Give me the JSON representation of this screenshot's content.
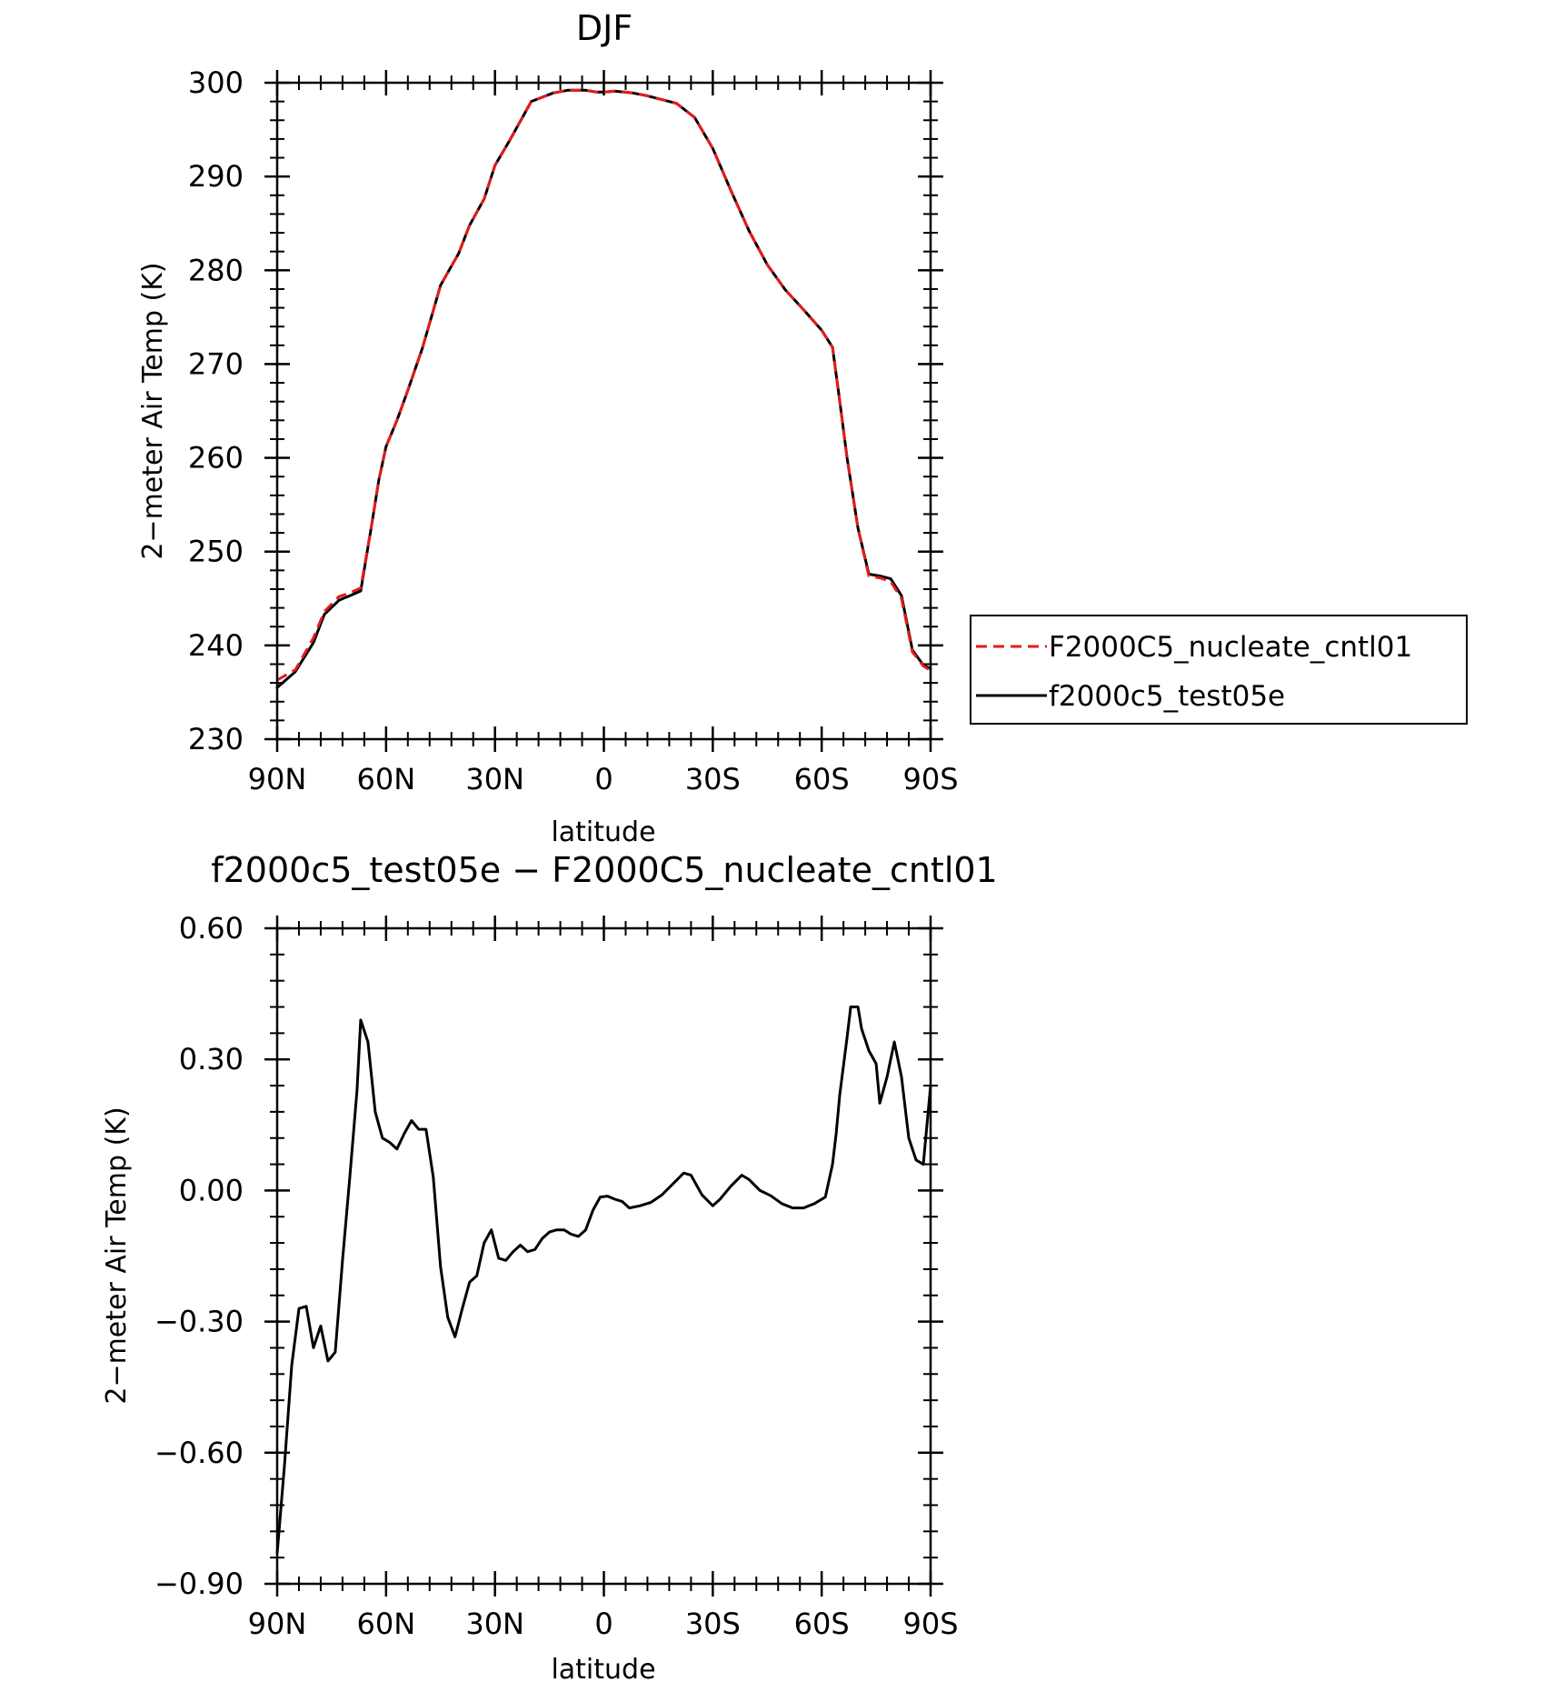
{
  "chart_data": [
    {
      "type": "line",
      "title": "DJF",
      "xlabel": "latitude",
      "ylabel": "2−meter Air Temp (K)",
      "xlim": [
        90,
        -90
      ],
      "ylim": [
        230,
        300
      ],
      "x_ticks": [
        {
          "value": 90,
          "label": "90N"
        },
        {
          "value": 60,
          "label": "60N"
        },
        {
          "value": 30,
          "label": "30N"
        },
        {
          "value": 0,
          "label": "0"
        },
        {
          "value": -30,
          "label": "30S"
        },
        {
          "value": -60,
          "label": "60S"
        },
        {
          "value": -90,
          "label": "90S"
        }
      ],
      "y_ticks": [
        {
          "value": 300,
          "label": "300"
        },
        {
          "value": 290,
          "label": "290"
        },
        {
          "value": 280,
          "label": "280"
        },
        {
          "value": 270,
          "label": "270"
        },
        {
          "value": 260,
          "label": "260"
        },
        {
          "value": 250,
          "label": "250"
        },
        {
          "value": 240,
          "label": "240"
        },
        {
          "value": 230,
          "label": "230"
        }
      ],
      "legend_position": "right",
      "series": [
        {
          "name": "F2000C5_nucleate_cntl01",
          "color": "#e41a1c",
          "style": "dashed",
          "x": [
            90,
            85,
            80,
            77,
            73,
            70,
            67,
            64,
            62,
            60,
            57,
            54,
            50,
            45,
            40,
            37,
            33,
            30,
            26,
            20,
            14,
            10,
            5,
            2,
            0,
            -3,
            -8,
            -12,
            -16,
            -20,
            -25,
            -30,
            -35,
            -40,
            -45,
            -50,
            -55,
            -60,
            -63,
            -65,
            -67,
            -70,
            -73,
            -76,
            -79,
            -82,
            -85,
            -88,
            -90
          ],
          "y": [
            236.3,
            237.4,
            240.8,
            243.6,
            245.2,
            245.6,
            246.1,
            252.8,
            257.6,
            261.2,
            264.0,
            267.2,
            271.7,
            278.4,
            281.8,
            284.8,
            287.6,
            291.2,
            293.8,
            298.0,
            298.9,
            299.2,
            299.2,
            299.0,
            299.0,
            299.1,
            298.9,
            298.6,
            298.2,
            297.8,
            296.3,
            293.0,
            288.5,
            284.2,
            280.6,
            277.9,
            275.8,
            273.6,
            271.8,
            266.0,
            260.0,
            252.5,
            247.4,
            247.2,
            246.8,
            245.0,
            239.3,
            237.8,
            237.3
          ]
        },
        {
          "name": "f2000c5_test05e",
          "color": "#000000",
          "style": "solid",
          "x": [
            90,
            85,
            80,
            77,
            73,
            70,
            67,
            64,
            62,
            60,
            57,
            54,
            50,
            45,
            40,
            37,
            33,
            30,
            26,
            20,
            14,
            10,
            5,
            2,
            0,
            -3,
            -8,
            -12,
            -16,
            -20,
            -25,
            -30,
            -35,
            -40,
            -45,
            -50,
            -55,
            -60,
            -63,
            -65,
            -67,
            -70,
            -73,
            -76,
            -79,
            -82,
            -85,
            -88,
            -90
          ],
          "y": [
            235.5,
            237.2,
            240.3,
            243.3,
            244.8,
            245.3,
            245.8,
            252.8,
            257.6,
            261.2,
            264.0,
            267.2,
            271.7,
            278.4,
            281.8,
            284.8,
            287.6,
            291.2,
            293.8,
            298.0,
            298.9,
            299.2,
            299.2,
            299.0,
            299.0,
            299.1,
            298.9,
            298.6,
            298.2,
            297.8,
            296.3,
            293.0,
            288.5,
            284.2,
            280.6,
            277.9,
            275.8,
            273.6,
            271.8,
            266.0,
            260.0,
            252.5,
            247.6,
            247.4,
            247.1,
            245.3,
            239.5,
            237.9,
            237.5
          ]
        }
      ]
    },
    {
      "type": "line",
      "title": "f2000c5_test05e − F2000C5_nucleate_cntl01",
      "xlabel": "latitude",
      "ylabel": "2−meter Air Temp (K)",
      "xlim": [
        90,
        -90
      ],
      "ylim": [
        -0.9,
        0.6
      ],
      "x_ticks": [
        {
          "value": 90,
          "label": "90N"
        },
        {
          "value": 60,
          "label": "60N"
        },
        {
          "value": 30,
          "label": "30N"
        },
        {
          "value": 0,
          "label": "0"
        },
        {
          "value": -30,
          "label": "30S"
        },
        {
          "value": -60,
          "label": "60S"
        },
        {
          "value": -90,
          "label": "90S"
        }
      ],
      "y_ticks": [
        {
          "value": 0.6,
          "label": "0.60"
        },
        {
          "value": 0.3,
          "label": "0.30"
        },
        {
          "value": 0.0,
          "label": "0.00"
        },
        {
          "value": -0.3,
          "label": "−0.30"
        },
        {
          "value": -0.6,
          "label": "−0.60"
        },
        {
          "value": -0.9,
          "label": "−0.90"
        }
      ],
      "series": [
        {
          "color": "#000000",
          "style": "solid",
          "x": [
            90,
            88,
            86,
            84,
            82,
            80,
            78,
            76,
            74,
            72,
            70,
            68,
            67,
            65,
            63,
            61,
            59,
            57,
            55,
            53,
            51,
            49,
            47,
            45,
            43,
            41,
            39,
            37,
            35,
            33,
            31,
            29,
            27,
            25,
            23,
            21,
            19,
            17,
            15,
            13,
            11,
            9,
            7,
            5,
            3,
            1,
            -1,
            -3,
            -5,
            -7,
            -10,
            -13,
            -16,
            -19,
            -22,
            -24,
            -27,
            -30,
            -32,
            -35,
            -38,
            -40,
            -43,
            -46,
            -49,
            -52,
            -55,
            -58,
            -61,
            -63,
            -64,
            -65,
            -67,
            -68,
            -70,
            -71,
            -73,
            -75,
            -76,
            -78,
            -80,
            -82,
            -84,
            -86,
            -88,
            -90
          ],
          "y": [
            -0.83,
            -0.63,
            -0.4,
            -0.27,
            -0.265,
            -0.36,
            -0.31,
            -0.39,
            -0.37,
            -0.16,
            0.03,
            0.23,
            0.39,
            0.34,
            0.18,
            0.12,
            0.11,
            0.095,
            0.13,
            0.16,
            0.14,
            0.14,
            0.03,
            -0.175,
            -0.29,
            -0.335,
            -0.27,
            -0.21,
            -0.195,
            -0.12,
            -0.09,
            -0.155,
            -0.16,
            -0.14,
            -0.125,
            -0.14,
            -0.135,
            -0.11,
            -0.095,
            -0.09,
            -0.09,
            -0.1,
            -0.105,
            -0.09,
            -0.045,
            -0.015,
            -0.013,
            -0.02,
            -0.025,
            -0.04,
            -0.035,
            -0.027,
            -0.01,
            0.015,
            0.04,
            0.035,
            -0.01,
            -0.035,
            -0.02,
            0.01,
            0.035,
            0.025,
            0.0,
            -0.012,
            -0.03,
            -0.04,
            -0.04,
            -0.03,
            -0.015,
            0.06,
            0.13,
            0.22,
            0.35,
            0.42,
            0.42,
            0.37,
            0.32,
            0.29,
            0.2,
            0.26,
            0.34,
            0.26,
            0.12,
            0.07,
            0.06,
            0.24
          ]
        }
      ]
    }
  ]
}
